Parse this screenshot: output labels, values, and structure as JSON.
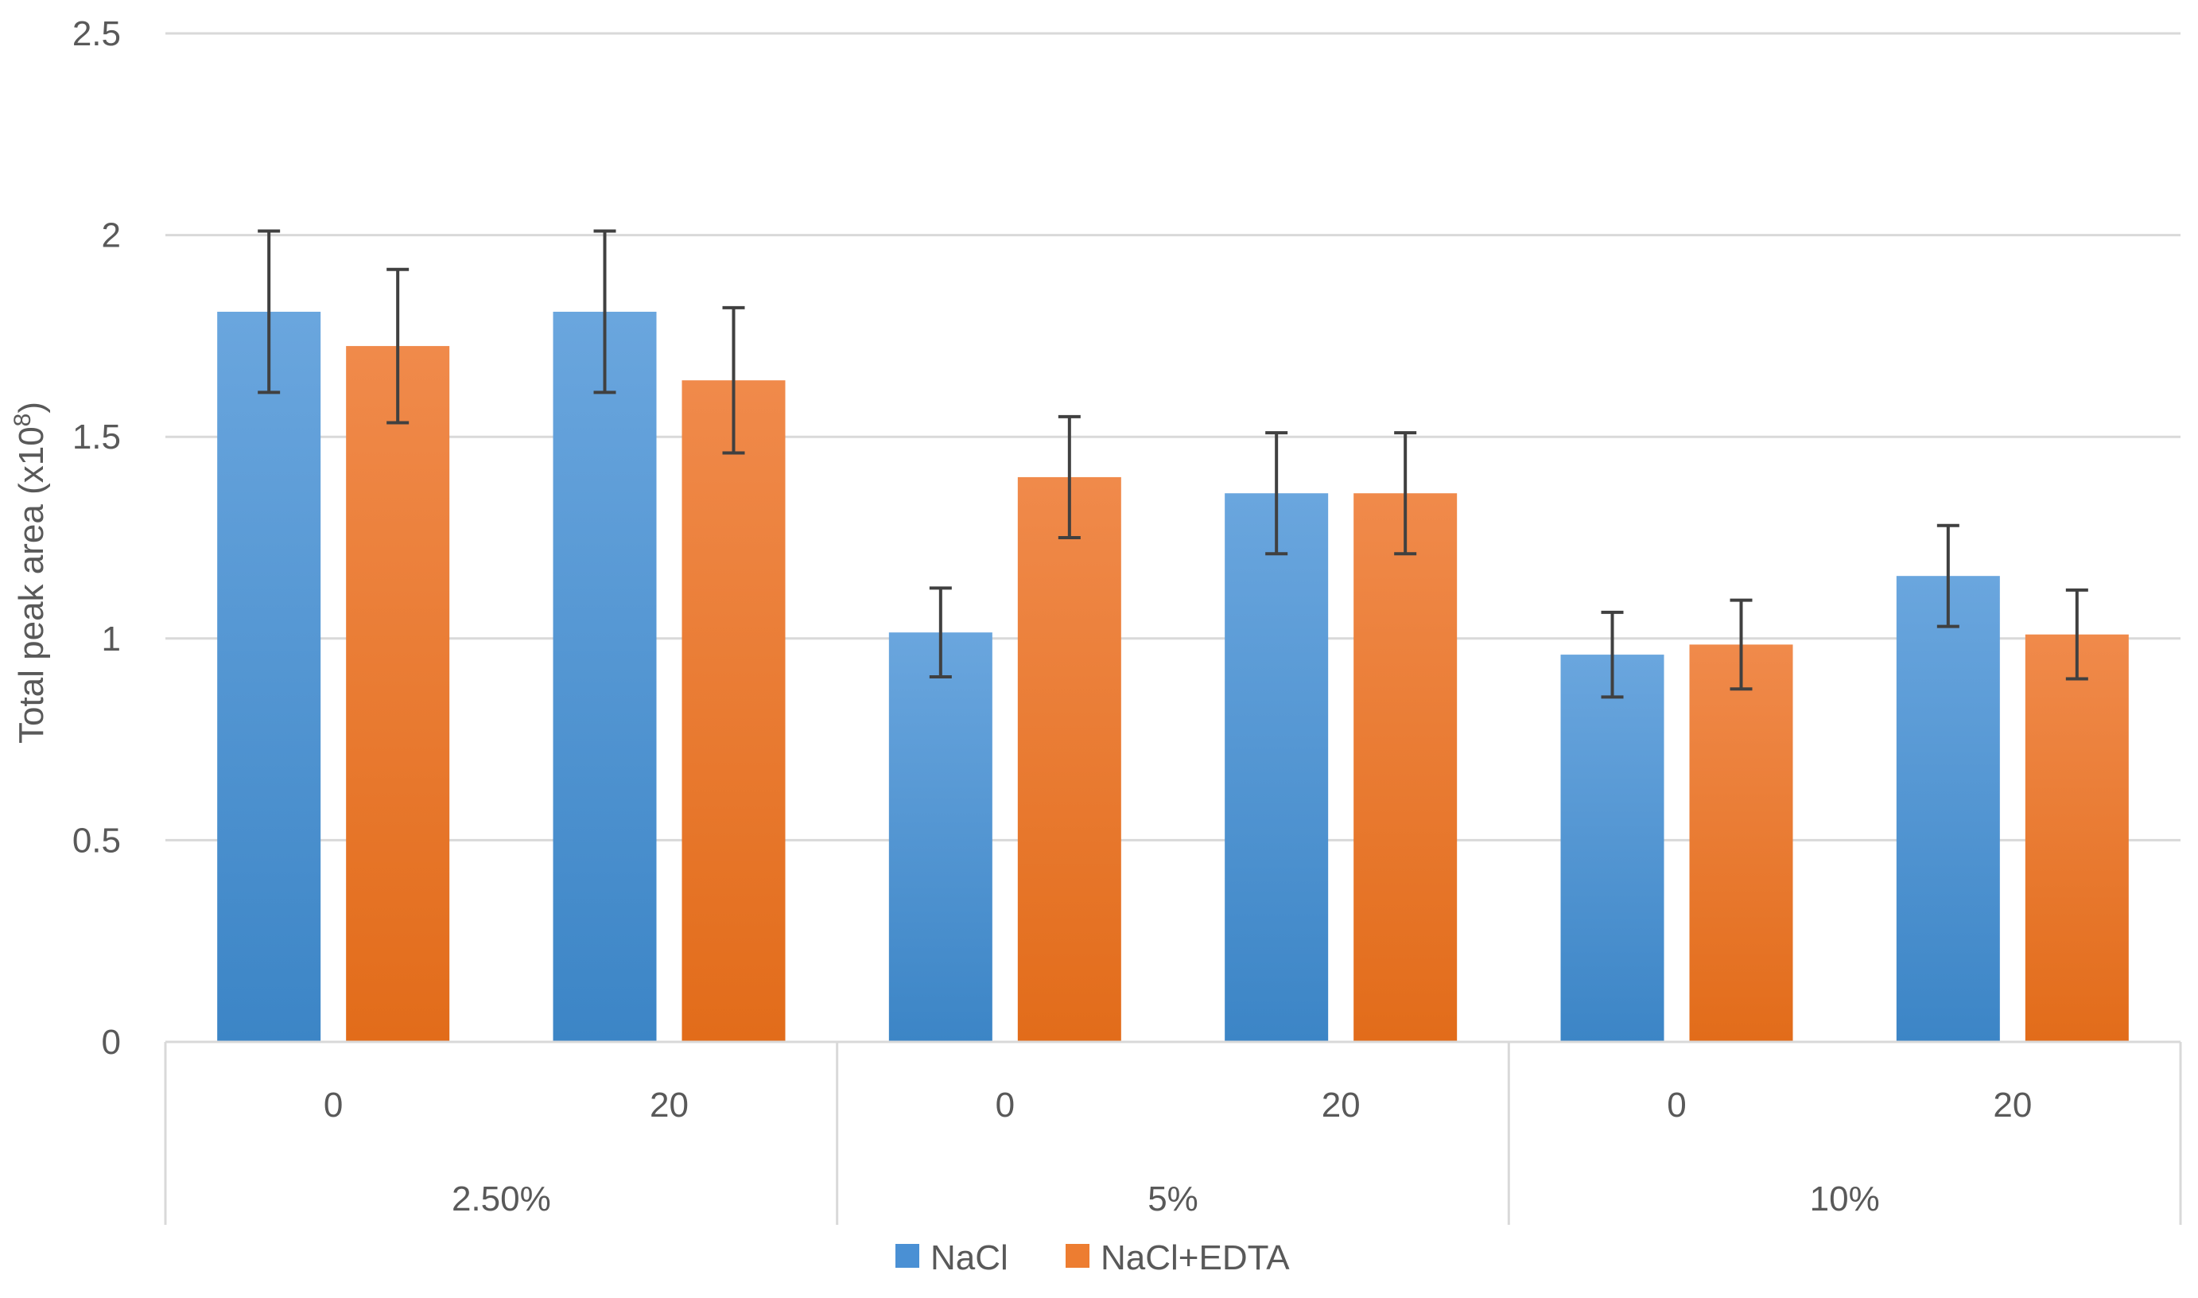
{
  "chart_data": {
    "type": "bar",
    "title": "",
    "xlabel": "",
    "ylabel": "Total peak area (x10",
    "ylabel_superscript": "8",
    "ylabel_close": ")",
    "ylim": [
      0,
      2.5
    ],
    "yticks": [
      0,
      0.5,
      1,
      1.5,
      2,
      2.5
    ],
    "ytick_labels": [
      "0",
      "0.5",
      "1",
      "1.5",
      "2",
      "2.5"
    ],
    "grid": true,
    "legend_position": "bottom",
    "groups": [
      {
        "label": "2.50%",
        "categories": [
          "0",
          "20"
        ]
      },
      {
        "label": "5%",
        "categories": [
          "0",
          "20"
        ]
      },
      {
        "label": "10%",
        "categories": [
          "0",
          "20"
        ]
      }
    ],
    "series": [
      {
        "name": "NaCl",
        "color": "#4A90D4",
        "color_light": "#6AA6DE",
        "color_dark": "#3C85C6",
        "values": [
          1.81,
          1.81,
          1.015,
          1.36,
          0.96,
          1.155
        ],
        "errors": [
          0.2,
          0.2,
          0.11,
          0.15,
          0.105,
          0.125
        ]
      },
      {
        "name": "NaCl+EDTA",
        "color": "#ED7D31",
        "color_light": "#F08A4B",
        "color_dark": "#E26C1A",
        "values": [
          1.725,
          1.64,
          1.4,
          1.36,
          0.985,
          1.01
        ],
        "errors": [
          0.19,
          0.18,
          0.15,
          0.15,
          0.11,
          0.11
        ]
      }
    ]
  }
}
